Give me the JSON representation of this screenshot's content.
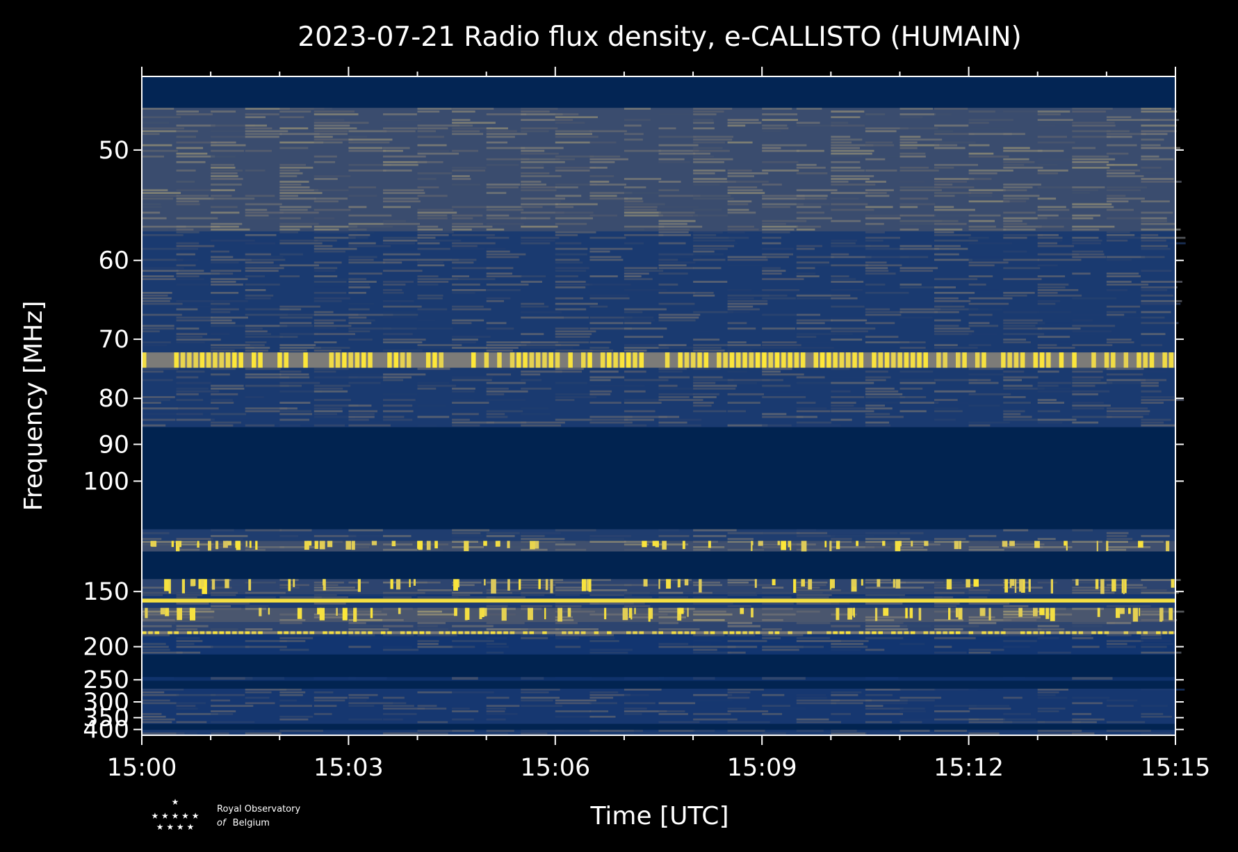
{
  "chart_data": {
    "type": "heatmap",
    "title": "2023-07-21 Radio flux density, e-CALLISTO (HUMAIN)",
    "xlabel": "Time [UTC]",
    "ylabel": "Frequency [MHz]",
    "x_ticks": [
      "15:00",
      "15:03",
      "15:06",
      "15:09",
      "15:12",
      "15:15"
    ],
    "x_minutes": [
      0,
      3,
      6,
      9,
      12,
      15
    ],
    "xlim_minutes": [
      0,
      15
    ],
    "y_ticks": [
      50,
      60,
      70,
      80,
      90,
      100,
      150,
      200,
      250,
      300,
      350,
      400
    ],
    "y_scale": "reciprocal",
    "ylim": [
      45,
      430
    ],
    "colormap": [
      "#00224e",
      "#123570",
      "#575d6d",
      "#7d7c78",
      "#a69d75",
      "#d3c164",
      "#fee838"
    ],
    "bands": [
      {
        "f_low": 45,
        "f_high": 47,
        "level": 0.05,
        "detail": "none"
      },
      {
        "f_low": 47,
        "f_high": 57,
        "level": 0.48,
        "detail": "noise"
      },
      {
        "f_low": 57,
        "f_high": 72,
        "level": 0.34,
        "detail": "noise"
      },
      {
        "f_low": 72,
        "f_high": 74.5,
        "level": 0.9,
        "detail": "dashed"
      },
      {
        "f_low": 74.5,
        "f_high": 86,
        "level": 0.34,
        "detail": "noise"
      },
      {
        "f_low": 86,
        "f_high": 117,
        "level": 0.02,
        "detail": "none"
      },
      {
        "f_low": 117,
        "f_high": 122,
        "level": 0.36,
        "detail": "noise"
      },
      {
        "f_low": 122,
        "f_high": 127,
        "level": 0.5,
        "detail": "bursts"
      },
      {
        "f_low": 127,
        "f_high": 142,
        "level": 0.02,
        "detail": "none"
      },
      {
        "f_low": 142,
        "f_high": 152,
        "level": 0.42,
        "detail": "bursts"
      },
      {
        "f_low": 152,
        "f_high": 155,
        "level": 0.3,
        "detail": "noise"
      },
      {
        "f_low": 155,
        "f_high": 158,
        "level": 0.96,
        "detail": "solid"
      },
      {
        "f_low": 158,
        "f_high": 162,
        "level": 0.35,
        "detail": "noise"
      },
      {
        "f_low": 162,
        "f_high": 174,
        "level": 0.55,
        "detail": "bursts"
      },
      {
        "f_low": 174,
        "f_high": 183,
        "level": 0.42,
        "detail": "noise"
      },
      {
        "f_low": 183,
        "f_high": 186,
        "level": 0.88,
        "detail": "dashed"
      },
      {
        "f_low": 186,
        "f_high": 210,
        "level": 0.3,
        "detail": "noise"
      },
      {
        "f_low": 210,
        "f_high": 245,
        "level": 0.02,
        "detail": "none"
      },
      {
        "f_low": 245,
        "f_high": 252,
        "level": 0.26,
        "detail": "noise"
      },
      {
        "f_low": 252,
        "f_high": 268,
        "level": 0.03,
        "detail": "none"
      },
      {
        "f_low": 268,
        "f_high": 375,
        "level": 0.32,
        "detail": "noise"
      },
      {
        "f_low": 375,
        "f_high": 402,
        "level": 0.03,
        "detail": "none"
      },
      {
        "f_low": 402,
        "f_high": 430,
        "level": 0.34,
        "detail": "noise"
      }
    ],
    "grid": false,
    "legend": "none"
  },
  "logo": {
    "line1": "Royal Observatory",
    "line2_italic": "of",
    "line2": "Belgium"
  }
}
